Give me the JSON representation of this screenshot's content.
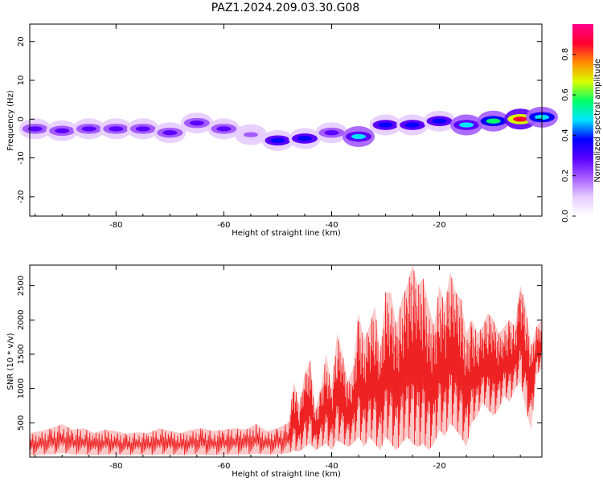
{
  "title": "PAZ1.2024.209.03.30.G08",
  "chart_data": [
    {
      "type": "heatmap",
      "xlabel": "Height of straight line (km)",
      "ylabel": "Frequency (Hz)",
      "xlim": [
        -96,
        -1
      ],
      "ylim": [
        -25,
        24.5
      ],
      "xticks": [
        -80,
        -60,
        -40,
        -20
      ],
      "xtick_labels": [
        "-80",
        "-60",
        "-40",
        "-20"
      ],
      "yticks": [
        -20,
        -10,
        0,
        10,
        20
      ],
      "ytick_labels": [
        "-20",
        "-10",
        "0",
        "10",
        "20"
      ],
      "colorbar": {
        "label": "Normalized spectral amplitude",
        "range": [
          0,
          0.95
        ],
        "ticks": [
          0.0,
          0.2,
          0.4,
          0.6,
          0.8
        ],
        "tick_labels": [
          "0.0",
          "0.2",
          "0.4",
          "0.6",
          "0.8"
        ],
        "colormap": "hsv-rainbow",
        "colors": [
          "#ffffff",
          "#e6ccff",
          "#a45cff",
          "#5a00ff",
          "#0000ff",
          "#00e5ff",
          "#00ff66",
          "#d8ff00",
          "#ff8c00",
          "#ff0033",
          "#ff0088"
        ]
      },
      "ridge": [
        {
          "x": -95,
          "y": -2.5,
          "amp": 0.25
        },
        {
          "x": -90,
          "y": -3.0,
          "amp": 0.3
        },
        {
          "x": -85,
          "y": -2.5,
          "amp": 0.28
        },
        {
          "x": -80,
          "y": -2.5,
          "amp": 0.25
        },
        {
          "x": -75,
          "y": -2.5,
          "amp": 0.3
        },
        {
          "x": -70,
          "y": -3.5,
          "amp": 0.3
        },
        {
          "x": -65,
          "y": -1.0,
          "amp": 0.28
        },
        {
          "x": -60,
          "y": -2.5,
          "amp": 0.25
        },
        {
          "x": -55,
          "y": -4.0,
          "amp": 0.2
        },
        {
          "x": -50,
          "y": -5.5,
          "amp": 0.35
        },
        {
          "x": -45,
          "y": -5.0,
          "amp": 0.4
        },
        {
          "x": -40,
          "y": -3.5,
          "amp": 0.3
        },
        {
          "x": -35,
          "y": -4.5,
          "amp": 0.45
        },
        {
          "x": -30,
          "y": -1.5,
          "amp": 0.35
        },
        {
          "x": -25,
          "y": -1.5,
          "amp": 0.35
        },
        {
          "x": -20,
          "y": -0.5,
          "amp": 0.4
        },
        {
          "x": -15,
          "y": -1.5,
          "amp": 0.45
        },
        {
          "x": -10,
          "y": -0.5,
          "amp": 0.6
        },
        {
          "x": -5,
          "y": 0.0,
          "amp": 0.9
        },
        {
          "x": -1,
          "y": 0.5,
          "amp": 0.5
        }
      ]
    },
    {
      "type": "line",
      "xlabel": "Height of straight line (km)",
      "ylabel": "SNR (10 * v/v)",
      "xlim": [
        -96,
        -1
      ],
      "ylim": [
        0,
        2800
      ],
      "xticks": [
        -80,
        -60,
        -40,
        -20
      ],
      "xtick_labels": [
        "-80",
        "-60",
        "-40",
        "-20"
      ],
      "yticks": [
        500,
        1000,
        1500,
        2000,
        2500
      ],
      "ytick_labels": [
        "500",
        "1000",
        "1500",
        "2000",
        "2500"
      ],
      "series": [
        {
          "color": "#ee2222",
          "x": [
            -96,
            -94,
            -92,
            -90,
            -88,
            -86,
            -84,
            -82,
            -80,
            -78,
            -76,
            -74,
            -72,
            -70,
            -68,
            -66,
            -64,
            -62,
            -60,
            -58,
            -56,
            -54,
            -52,
            -50,
            -48,
            -47,
            -46,
            -45,
            -44,
            -43,
            -42,
            -41,
            -40,
            -39,
            -38,
            -37,
            -36,
            -35,
            -34,
            -33,
            -32,
            -31,
            -30,
            -29,
            -28,
            -27,
            -26,
            -25,
            -24,
            -23,
            -22,
            -21,
            -20,
            -19,
            -18,
            -17,
            -16,
            -15,
            -14,
            -13,
            -12,
            -11,
            -10,
            -9,
            -8,
            -7,
            -6,
            -5,
            -4,
            -3,
            -2,
            -1
          ],
          "y": [
            150,
            200,
            250,
            300,
            200,
            250,
            180,
            220,
            200,
            170,
            210,
            180,
            240,
            200,
            180,
            220,
            250,
            200,
            230,
            260,
            250,
            300,
            200,
            250,
            250,
            650,
            400,
            700,
            750,
            350,
            500,
            900,
            500,
            1050,
            900,
            600,
            800,
            1150,
            900,
            1200,
            1500,
            1100,
            1400,
            1800,
            1400,
            1600,
            2200,
            2500,
            1900,
            2000,
            1500,
            1400,
            2100,
            1700,
            2200,
            2000,
            1900,
            1600,
            1700,
            1500,
            1600,
            1800,
            1700,
            1500,
            1600,
            1700,
            1600,
            2400,
            1800,
            1300,
            1600,
            1750
          ],
          "y_min": [
            20,
            40,
            40,
            60,
            40,
            40,
            30,
            40,
            40,
            30,
            40,
            30,
            40,
            40,
            30,
            40,
            40,
            30,
            40,
            40,
            40,
            50,
            40,
            40,
            60,
            100,
            80,
            150,
            200,
            100,
            150,
            200,
            100,
            250,
            200,
            150,
            200,
            300,
            150,
            300,
            200,
            100,
            300,
            200,
            100,
            200,
            300,
            200,
            150,
            200,
            100,
            200,
            400,
            300,
            500,
            400,
            300,
            150,
            500,
            600,
            800,
            700,
            600,
            700,
            900,
            800,
            1000,
            1100,
            700,
            400,
            1200,
            1300
          ],
          "y_max": [
            350,
            380,
            420,
            480,
            400,
            420,
            350,
            400,
            380,
            340,
            360,
            350,
            420,
            380,
            350,
            400,
            420,
            380,
            400,
            420,
            400,
            480,
            380,
            420,
            500,
            1100,
            750,
            1200,
            1400,
            700,
            1000,
            1500,
            1000,
            1800,
            1500,
            1100,
            1300,
            2100,
            1700,
            1900,
            2200,
            1500,
            2400,
            2400,
            1900,
            2300,
            2500,
            2800,
            2500,
            2600,
            2200,
            1900,
            2500,
            2200,
            2700,
            2400,
            2300,
            1800,
            2000,
            1800,
            1900,
            2100,
            2000,
            1800,
            1900,
            2000,
            1900,
            2500,
            2200,
            1600,
            1900,
            2000
          ]
        }
      ]
    }
  ]
}
